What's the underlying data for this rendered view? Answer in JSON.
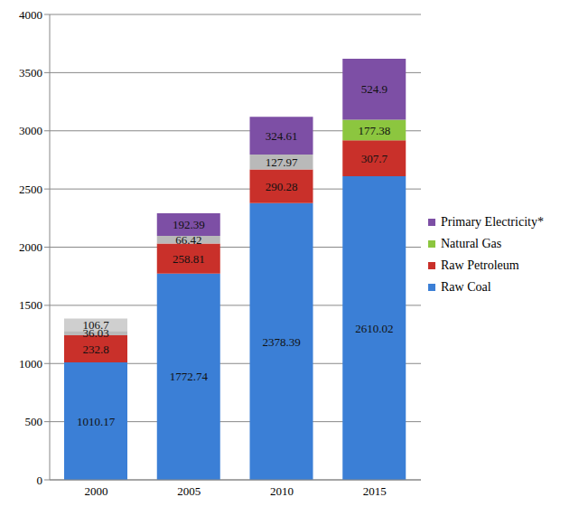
{
  "chart_data": {
    "type": "bar",
    "stacked": true,
    "data_labels": true,
    "grid": true,
    "legend": "right",
    "categories": [
      "2000",
      "2005",
      "2010",
      "2015"
    ],
    "ylim": [
      0,
      4000
    ],
    "yticks": [
      0,
      500,
      1000,
      1500,
      2000,
      2500,
      3000,
      3500,
      4000
    ],
    "series": [
      {
        "name": "Raw Coal",
        "color": "#3b7fd6",
        "values": [
          1010.17,
          1772.74,
          2378.39,
          2610.02
        ]
      },
      {
        "name": "Raw Petroleum",
        "color": "#c9302a",
        "values": [
          232.8,
          258.81,
          290.28,
          307.7
        ]
      },
      {
        "name": "Natural Gas",
        "color": "#8cc63f",
        "colors": [
          "#b9b9b9",
          "#b9b9b9",
          "#b9b9b9",
          "#8cc63f"
        ],
        "values": [
          36.03,
          66.42,
          127.97,
          177.38
        ]
      },
      {
        "name": "Primary Electricity*",
        "color": "#7d4fa5",
        "colors": [
          "#cfcfcf",
          "#7d4fa5",
          "#7d4fa5",
          "#7d4fa5"
        ],
        "values": [
          106.7,
          192.39,
          324.61,
          524.9
        ]
      }
    ]
  }
}
